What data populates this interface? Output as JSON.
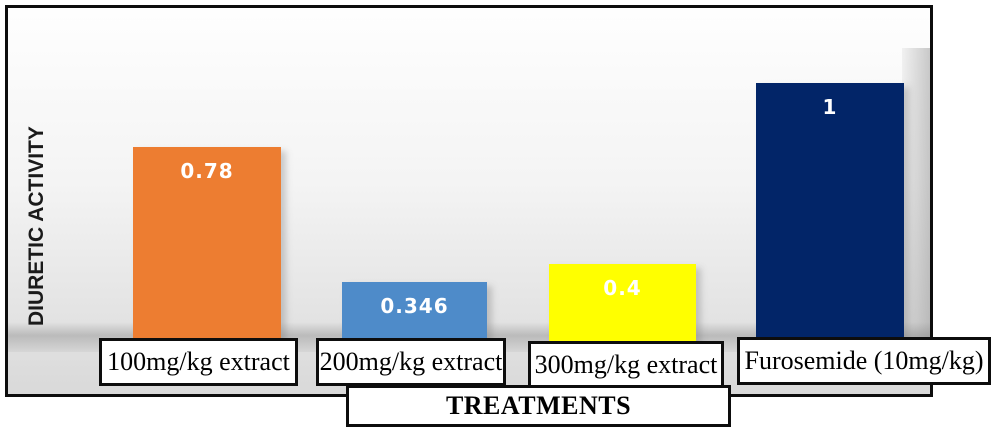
{
  "chart_data": {
    "type": "bar",
    "title": "",
    "xlabel": "TREATMENTS",
    "ylabel": "DIURETIC ACTIVITY",
    "categories": [
      "100mg/kg extract",
      "200mg/kg extract",
      "300mg/kg extract",
      "Furosemide (10mg/kg)"
    ],
    "values": [
      0.78,
      0.346,
      0.4,
      1
    ],
    "value_labels": [
      "0.78",
      "0.346",
      "0.4",
      "1"
    ],
    "bar_colors": [
      "#ED7D31",
      "#4E8BC9",
      "#FFFF00",
      "#022568"
    ],
    "value_label_color": "#ffffff",
    "ylim": [
      0,
      1
    ],
    "grid": false,
    "legend": "none",
    "plot_background": "white-to-gray vertical gradient with 3D floor and right-wall shading",
    "frame_border_color": "#0d0d0d"
  }
}
